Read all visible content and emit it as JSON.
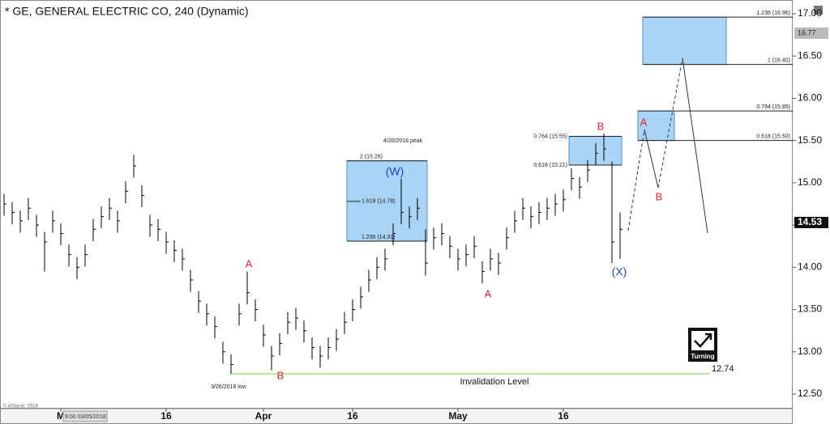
{
  "chart_data": {
    "type": "ohlc",
    "title": "* GE, GENERAL ELECTRIC CO, 240 (Dynamic)",
    "xlim": [
      -0.5,
      97.3
    ],
    "ylim": [
      12.5,
      17.0
    ],
    "yticks": [
      {
        "value": 12.5,
        "label": "12.50"
      },
      {
        "value": 13,
        "label": "13.00"
      },
      {
        "value": 13.5,
        "label": "13.50"
      },
      {
        "value": 14,
        "label": "14.00"
      },
      {
        "value": 14.5,
        "label": "14.50"
      },
      {
        "value": 15,
        "label": "15.00"
      },
      {
        "value": 15.5,
        "label": "15.50"
      },
      {
        "value": 16,
        "label": "16.00"
      },
      {
        "value": 16.5,
        "label": "16.50"
      },
      {
        "value": 17,
        "label": "17.00"
      }
    ],
    "xticks": [
      {
        "value": 7,
        "label": "M"
      },
      {
        "value": 20,
        "label": "16"
      },
      {
        "value": 32,
        "label": "Apr"
      },
      {
        "value": 43,
        "label": "16"
      },
      {
        "value": 56,
        "label": "May"
      },
      {
        "value": 69,
        "label": "16"
      }
    ],
    "high": [
      14.87,
      14.77,
      14.67,
      14.82,
      14.62,
      14.42,
      14.67,
      14.52,
      14.27,
      14.12,
      14.27,
      14.57,
      14.72,
      14.82,
      14.67,
      15.02,
      15.33,
      14.97,
      14.62,
      14.57,
      14.42,
      14.32,
      14.22,
      13.97,
      13.72,
      13.57,
      13.42,
      13.12,
      12.97,
      13.57,
      13.95,
      13.62,
      13.32,
      13.07,
      13.22,
      13.47,
      13.52,
      13.37,
      13.17,
      13.07,
      13.17,
      13.27,
      13.47,
      13.62,
      13.77,
      13.97,
      14.12,
      14.22,
      14.52,
      15.05,
      14.72,
      14.82,
      14.45,
      14.47,
      14.52,
      14.37,
      14.22,
      14.27,
      14.37,
      14.07,
      14.22,
      14.17,
      14.47,
      14.67,
      14.82,
      14.72,
      14.77,
      14.82,
      14.87,
      14.92,
      15.17,
      15.07,
      15.27,
      15.47,
      15.58,
      15.25,
      14.65
    ],
    "low": [
      14.61,
      14.51,
      14.41,
      14.56,
      14.36,
      13.95,
      14.41,
      14.26,
      14.01,
      13.86,
      14.01,
      14.31,
      14.46,
      14.56,
      14.41,
      14.76,
      15.06,
      14.71,
      14.36,
      14.31,
      14.16,
      14.06,
      13.96,
      13.71,
      13.46,
      13.31,
      13.16,
      12.86,
      12.74,
      13.31,
      13.56,
      13.36,
      13.06,
      12.78,
      12.96,
      13.21,
      13.26,
      13.11,
      12.91,
      12.81,
      12.91,
      13.01,
      13.21,
      13.36,
      13.51,
      13.71,
      13.86,
      13.96,
      14.26,
      14.51,
      14.46,
      14.56,
      13.9,
      14.21,
      14.26,
      14.11,
      13.96,
      14.01,
      14.11,
      13.81,
      13.96,
      13.91,
      14.21,
      14.41,
      14.56,
      14.46,
      14.51,
      14.56,
      14.61,
      14.66,
      14.91,
      14.81,
      15.01,
      15.21,
      15.26,
      14.05,
      14.1
    ],
    "close": [
      14.75,
      14.65,
      14.55,
      14.7,
      14.5,
      14.3,
      14.55,
      14.4,
      14.15,
      14.0,
      14.15,
      14.45,
      14.6,
      14.7,
      14.55,
      14.9,
      15.2,
      14.85,
      14.5,
      14.45,
      14.3,
      14.2,
      14.1,
      13.85,
      13.6,
      13.45,
      13.3,
      13.0,
      12.85,
      13.45,
      13.7,
      13.5,
      13.2,
      12.95,
      13.1,
      13.35,
      13.4,
      13.25,
      13.05,
      12.95,
      13.05,
      13.15,
      13.35,
      13.5,
      13.65,
      13.85,
      14.0,
      14.1,
      14.4,
      14.65,
      14.6,
      14.7,
      14.05,
      14.35,
      14.4,
      14.25,
      14.1,
      14.15,
      14.25,
      13.95,
      14.1,
      14.05,
      14.35,
      14.55,
      14.7,
      14.6,
      14.65,
      14.7,
      14.75,
      14.8,
      15.05,
      14.95,
      15.15,
      15.35,
      15.4,
      14.3,
      14.45
    ],
    "color": "#000000",
    "price_markers": [
      16.77,
      14.53
    ],
    "invalidation": {
      "value": 12.74,
      "label": "Invalidation Level",
      "color": "#7ed957"
    },
    "fib_levels": [
      {
        "value": 15.26,
        "label": "2 (15.26)"
      },
      {
        "value": 14.78,
        "label": "1.618 (14.78)"
      },
      {
        "value": 14.31,
        "label": "1.236 (14.31)"
      },
      {
        "value": 15.55,
        "label": "0.764 (15.55)"
      },
      {
        "value": 15.21,
        "label": "0.618 (15.21)"
      },
      {
        "value": 16.96,
        "label": "1.236 (16.96)"
      },
      {
        "value": 16.4,
        "label": "1 (16.40)"
      },
      {
        "value": 15.85,
        "label": "0.764 (15.85)"
      },
      {
        "value": 15.5,
        "label": "0.618 (15.50)"
      }
    ],
    "zone_color": "#a9d4f5",
    "annotations": [
      {
        "text": "4/20/2018 peak",
        "color": "#222222"
      },
      {
        "text": "(W)",
        "color": "#1f3fd0"
      },
      {
        "text": "(X)",
        "color": "#1f3fd0"
      },
      {
        "text": "A",
        "color": "#e8202a"
      },
      {
        "text": "B",
        "color": "#e8202a"
      },
      {
        "text": "A",
        "color": "#e8202a"
      },
      {
        "text": "B",
        "color": "#e8202a"
      },
      {
        "text": "A",
        "color": "#e8202a"
      },
      {
        "text": "B",
        "color": "#e8202a"
      },
      {
        "text": "3/26/2018 low",
        "color": "#222222"
      }
    ],
    "logo_text": "Turning",
    "crosshair_label": "9:00 03/05/2018",
    "copyright": "© eSignal, 2018"
  }
}
